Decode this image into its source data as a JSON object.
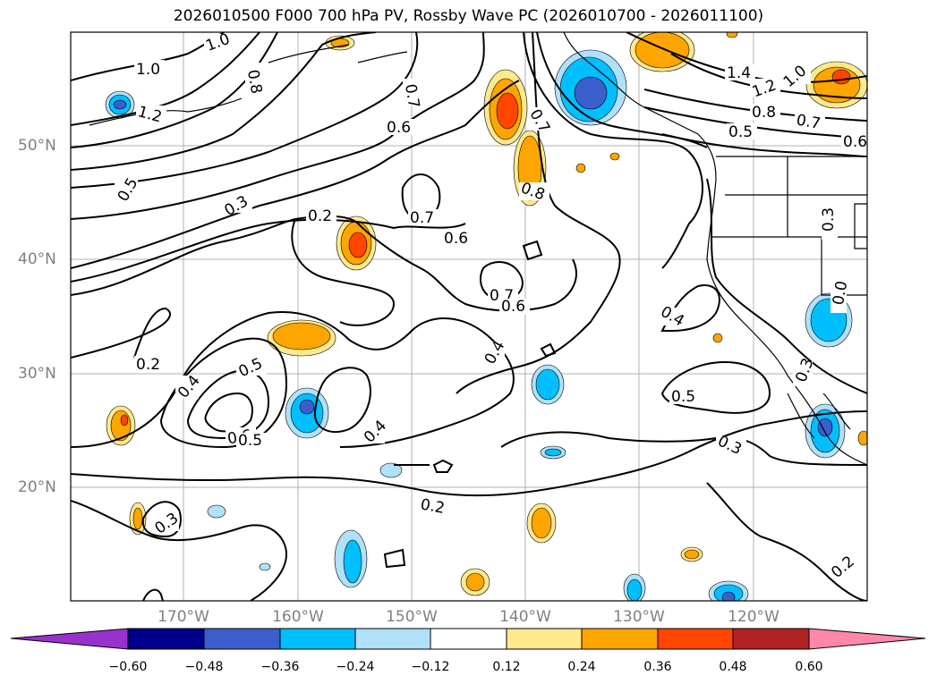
{
  "title": "2026010500 F000 700 hPa PV, Rossby Wave PC (2026010700 - 2026011100)",
  "lat_labels": [
    "50°N",
    "40°N",
    "30°N",
    "20°N"
  ],
  "lon_labels": [
    "170°W",
    "160°W",
    "150°W",
    "140°W",
    "130°W",
    "120°W"
  ],
  "contour_labels": [
    "1.0",
    "1.0",
    "0.8",
    "1.2",
    "0.7",
    "0.6",
    "0.5",
    "0.3",
    "0.2",
    "0.7",
    "0.6",
    "0.7",
    "0.6",
    "0.8",
    "0.7",
    "1.4",
    "1.2",
    "1.0",
    "0.8",
    "0.7",
    "0.5",
    "0.6",
    "0.3",
    "0.0",
    "0.4",
    "0.5",
    "0.3",
    "0.4",
    "0.5",
    "0.2",
    "0.4",
    "0.6",
    "0.5",
    "0.4",
    "0.2",
    "0.3",
    "0.3",
    "0.2"
  ],
  "colorbar": {
    "ticks": [
      "−0.60",
      "−0.48",
      "−0.36",
      "−0.24",
      "−0.12",
      "0.12",
      "0.24",
      "0.36",
      "0.48",
      "0.60"
    ],
    "colors": [
      "#9932cc",
      "#00008b",
      "#3a5fcd",
      "#00bfff",
      "#afe1fa",
      "#ffffff",
      "#ffe98c",
      "#ffa500",
      "#ff4500",
      "#b22222",
      "#ff88aa"
    ]
  }
}
